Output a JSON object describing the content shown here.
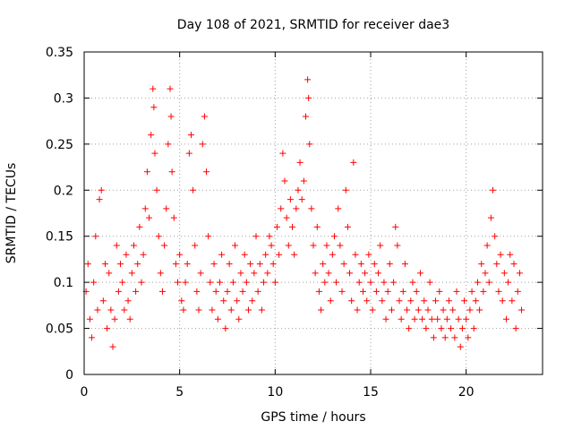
{
  "chart_data": {
    "type": "scatter",
    "title": "Day 108 of 2021, SRMTID for receiver dae3",
    "xlabel": "GPS time / hours",
    "ylabel": "SRMTID / TECUs",
    "xlim": [
      0,
      24
    ],
    "ylim": [
      0,
      0.35
    ],
    "grid": true,
    "x_ticks": [
      0,
      5,
      10,
      15,
      20
    ],
    "x_tick_labels": [
      "0",
      "5",
      "10",
      "15",
      "20"
    ],
    "y_ticks": [
      0,
      0.05,
      0.1,
      0.15,
      0.2,
      0.25,
      0.3,
      0.35
    ],
    "y_tick_labels": [
      "0",
      "0.05",
      "0.1",
      "0.15",
      "0.2",
      "0.25",
      "0.3",
      "0.35"
    ],
    "marker": "+",
    "marker_color": "#ff0000",
    "series": [
      {
        "name": "SRMTID",
        "points": [
          [
            0.1,
            0.09
          ],
          [
            0.2,
            0.12
          ],
          [
            0.3,
            0.06
          ],
          [
            0.4,
            0.04
          ],
          [
            0.5,
            0.1
          ],
          [
            0.6,
            0.15
          ],
          [
            0.7,
            0.07
          ],
          [
            0.8,
            0.19
          ],
          [
            0.9,
            0.2
          ],
          [
            1.0,
            0.08
          ],
          [
            1.1,
            0.12
          ],
          [
            1.2,
            0.05
          ],
          [
            1.3,
            0.11
          ],
          [
            1.4,
            0.07
          ],
          [
            1.5,
            0.03
          ],
          [
            1.6,
            0.06
          ],
          [
            1.7,
            0.14
          ],
          [
            1.8,
            0.09
          ],
          [
            1.9,
            0.12
          ],
          [
            2.0,
            0.1
          ],
          [
            2.1,
            0.07
          ],
          [
            2.2,
            0.13
          ],
          [
            2.3,
            0.08
          ],
          [
            2.4,
            0.06
          ],
          [
            2.5,
            0.11
          ],
          [
            2.6,
            0.14
          ],
          [
            2.7,
            0.09
          ],
          [
            2.8,
            0.12
          ],
          [
            2.9,
            0.16
          ],
          [
            3.0,
            0.1
          ],
          [
            3.1,
            0.13
          ],
          [
            3.2,
            0.18
          ],
          [
            3.3,
            0.22
          ],
          [
            3.4,
            0.17
          ],
          [
            3.5,
            0.26
          ],
          [
            3.6,
            0.31
          ],
          [
            3.65,
            0.29
          ],
          [
            3.7,
            0.24
          ],
          [
            3.8,
            0.2
          ],
          [
            3.9,
            0.15
          ],
          [
            4.0,
            0.11
          ],
          [
            4.1,
            0.09
          ],
          [
            4.2,
            0.14
          ],
          [
            4.3,
            0.18
          ],
          [
            4.4,
            0.25
          ],
          [
            4.5,
            0.31
          ],
          [
            4.55,
            0.28
          ],
          [
            4.6,
            0.22
          ],
          [
            4.7,
            0.17
          ],
          [
            4.8,
            0.12
          ],
          [
            4.9,
            0.1
          ],
          [
            5.0,
            0.13
          ],
          [
            5.1,
            0.08
          ],
          [
            5.2,
            0.07
          ],
          [
            5.3,
            0.1
          ],
          [
            5.4,
            0.12
          ],
          [
            5.5,
            0.24
          ],
          [
            5.6,
            0.26
          ],
          [
            5.7,
            0.2
          ],
          [
            5.8,
            0.14
          ],
          [
            5.9,
            0.09
          ],
          [
            6.0,
            0.07
          ],
          [
            6.1,
            0.11
          ],
          [
            6.2,
            0.25
          ],
          [
            6.3,
            0.28
          ],
          [
            6.4,
            0.22
          ],
          [
            6.5,
            0.15
          ],
          [
            6.6,
            0.1
          ],
          [
            6.7,
            0.07
          ],
          [
            6.8,
            0.12
          ],
          [
            6.9,
            0.09
          ],
          [
            7.0,
            0.06
          ],
          [
            7.1,
            0.1
          ],
          [
            7.2,
            0.13
          ],
          [
            7.3,
            0.08
          ],
          [
            7.4,
            0.05
          ],
          [
            7.5,
            0.09
          ],
          [
            7.6,
            0.12
          ],
          [
            7.7,
            0.07
          ],
          [
            7.8,
            0.1
          ],
          [
            7.9,
            0.14
          ],
          [
            8.0,
            0.08
          ],
          [
            8.1,
            0.06
          ],
          [
            8.2,
            0.11
          ],
          [
            8.3,
            0.09
          ],
          [
            8.4,
            0.13
          ],
          [
            8.5,
            0.1
          ],
          [
            8.6,
            0.07
          ],
          [
            8.7,
            0.12
          ],
          [
            8.8,
            0.08
          ],
          [
            8.9,
            0.11
          ],
          [
            9.0,
            0.15
          ],
          [
            9.1,
            0.09
          ],
          [
            9.2,
            0.12
          ],
          [
            9.3,
            0.07
          ],
          [
            9.4,
            0.1
          ],
          [
            9.5,
            0.13
          ],
          [
            9.6,
            0.11
          ],
          [
            9.7,
            0.15
          ],
          [
            9.8,
            0.14
          ],
          [
            9.9,
            0.12
          ],
          [
            10.0,
            0.1
          ],
          [
            10.1,
            0.16
          ],
          [
            10.2,
            0.13
          ],
          [
            10.3,
            0.18
          ],
          [
            10.4,
            0.24
          ],
          [
            10.5,
            0.21
          ],
          [
            10.6,
            0.17
          ],
          [
            10.7,
            0.14
          ],
          [
            10.8,
            0.19
          ],
          [
            10.9,
            0.16
          ],
          [
            11.0,
            0.13
          ],
          [
            11.1,
            0.18
          ],
          [
            11.2,
            0.2
          ],
          [
            11.3,
            0.23
          ],
          [
            11.4,
            0.19
          ],
          [
            11.5,
            0.21
          ],
          [
            11.6,
            0.28
          ],
          [
            11.7,
            0.32
          ],
          [
            11.75,
            0.3
          ],
          [
            11.8,
            0.25
          ],
          [
            11.9,
            0.18
          ],
          [
            12.0,
            0.14
          ],
          [
            12.1,
            0.11
          ],
          [
            12.2,
            0.16
          ],
          [
            12.3,
            0.09
          ],
          [
            12.4,
            0.07
          ],
          [
            12.5,
            0.12
          ],
          [
            12.6,
            0.1
          ],
          [
            12.7,
            0.14
          ],
          [
            12.8,
            0.11
          ],
          [
            12.9,
            0.08
          ],
          [
            13.0,
            0.13
          ],
          [
            13.1,
            0.15
          ],
          [
            13.2,
            0.1
          ],
          [
            13.3,
            0.18
          ],
          [
            13.4,
            0.14
          ],
          [
            13.5,
            0.09
          ],
          [
            13.6,
            0.12
          ],
          [
            13.7,
            0.2
          ],
          [
            13.8,
            0.16
          ],
          [
            13.9,
            0.11
          ],
          [
            14.0,
            0.08
          ],
          [
            14.1,
            0.23
          ],
          [
            14.2,
            0.13
          ],
          [
            14.3,
            0.07
          ],
          [
            14.4,
            0.1
          ],
          [
            14.5,
            0.12
          ],
          [
            14.6,
            0.09
          ],
          [
            14.7,
            0.11
          ],
          [
            14.8,
            0.08
          ],
          [
            14.9,
            0.13
          ],
          [
            15.0,
            0.1
          ],
          [
            15.1,
            0.07
          ],
          [
            15.2,
            0.12
          ],
          [
            15.3,
            0.09
          ],
          [
            15.4,
            0.11
          ],
          [
            15.5,
            0.14
          ],
          [
            15.6,
            0.08
          ],
          [
            15.7,
            0.1
          ],
          [
            15.8,
            0.06
          ],
          [
            15.9,
            0.09
          ],
          [
            16.0,
            0.12
          ],
          [
            16.1,
            0.07
          ],
          [
            16.2,
            0.1
          ],
          [
            16.3,
            0.16
          ],
          [
            16.4,
            0.14
          ],
          [
            16.5,
            0.08
          ],
          [
            16.6,
            0.06
          ],
          [
            16.7,
            0.09
          ],
          [
            16.8,
            0.12
          ],
          [
            16.9,
            0.07
          ],
          [
            17.0,
            0.05
          ],
          [
            17.1,
            0.08
          ],
          [
            17.2,
            0.1
          ],
          [
            17.3,
            0.06
          ],
          [
            17.4,
            0.09
          ],
          [
            17.5,
            0.07
          ],
          [
            17.6,
            0.11
          ],
          [
            17.7,
            0.06
          ],
          [
            17.8,
            0.08
          ],
          [
            17.9,
            0.05
          ],
          [
            18.0,
            0.07
          ],
          [
            18.1,
            0.1
          ],
          [
            18.2,
            0.06
          ],
          [
            18.3,
            0.04
          ],
          [
            18.4,
            0.08
          ],
          [
            18.5,
            0.06
          ],
          [
            18.6,
            0.09
          ],
          [
            18.7,
            0.05
          ],
          [
            18.8,
            0.07
          ],
          [
            18.9,
            0.04
          ],
          [
            19.0,
            0.06
          ],
          [
            19.1,
            0.08
          ],
          [
            19.2,
            0.05
          ],
          [
            19.3,
            0.07
          ],
          [
            19.4,
            0.04
          ],
          [
            19.5,
            0.09
          ],
          [
            19.6,
            0.06
          ],
          [
            19.7,
            0.03
          ],
          [
            19.8,
            0.05
          ],
          [
            19.9,
            0.08
          ],
          [
            20.0,
            0.06
          ],
          [
            20.1,
            0.04
          ],
          [
            20.2,
            0.07
          ],
          [
            20.3,
            0.09
          ],
          [
            20.4,
            0.05
          ],
          [
            20.5,
            0.08
          ],
          [
            20.6,
            0.1
          ],
          [
            20.7,
            0.07
          ],
          [
            20.8,
            0.12
          ],
          [
            20.9,
            0.09
          ],
          [
            21.0,
            0.11
          ],
          [
            21.1,
            0.14
          ],
          [
            21.2,
            0.1
          ],
          [
            21.3,
            0.17
          ],
          [
            21.4,
            0.2
          ],
          [
            21.5,
            0.15
          ],
          [
            21.6,
            0.12
          ],
          [
            21.7,
            0.09
          ],
          [
            21.8,
            0.13
          ],
          [
            21.9,
            0.08
          ],
          [
            22.0,
            0.11
          ],
          [
            22.1,
            0.06
          ],
          [
            22.2,
            0.1
          ],
          [
            22.3,
            0.13
          ],
          [
            22.4,
            0.08
          ],
          [
            22.5,
            0.12
          ],
          [
            22.6,
            0.05
          ],
          [
            22.7,
            0.09
          ],
          [
            22.8,
            0.11
          ],
          [
            22.9,
            0.07
          ]
        ]
      }
    ]
  }
}
